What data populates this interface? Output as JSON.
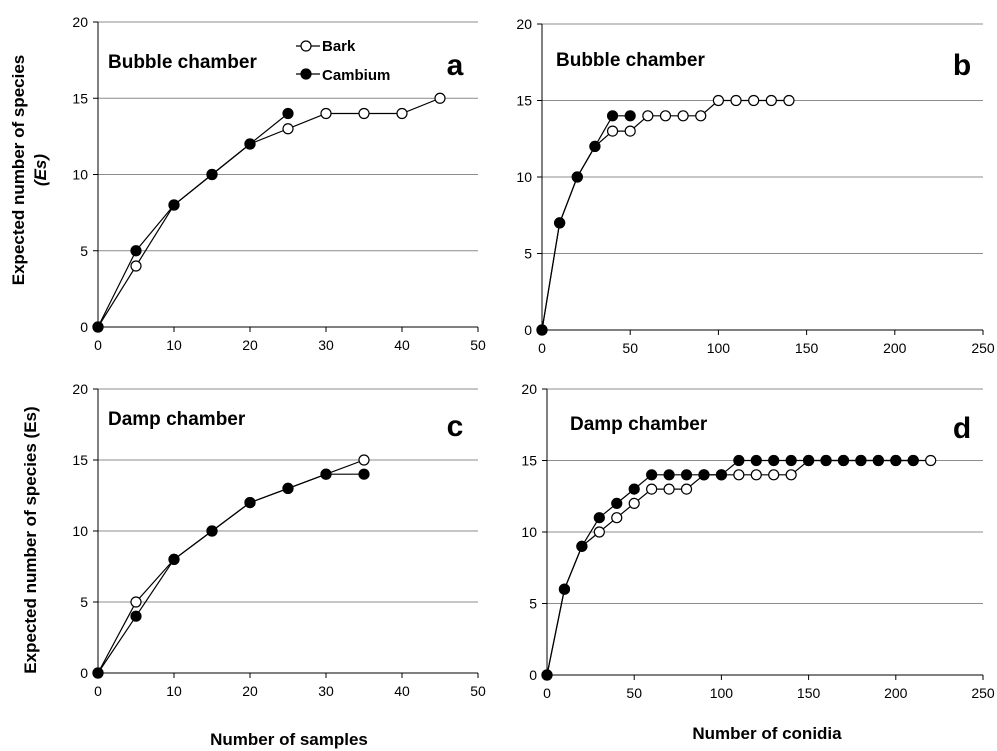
{
  "legend": {
    "series": [
      "Bark",
      "Cambium"
    ]
  },
  "labels": {
    "ylabel_top_line1": "Expected number of species",
    "ylabel_top_line2": "(Es)",
    "ylabel_bottom": "Expected number of species (Es)",
    "xlabel_left": "Number of samples",
    "xlabel_right": "Number of conidia"
  },
  "chart_data": [
    {
      "panel": "a",
      "type": "line",
      "title": "Bubble chamber",
      "xlim": [
        0,
        50
      ],
      "ylim": [
        0,
        20
      ],
      "xticks": [
        0,
        10,
        20,
        30,
        40,
        50
      ],
      "yticks": [
        0,
        5,
        10,
        15,
        20
      ],
      "grid": "horizontal",
      "legend_position": "top-center",
      "series": [
        {
          "name": "Bark",
          "marker": "open-circle",
          "x": [
            0,
            5,
            10,
            15,
            20,
            25,
            30,
            35,
            40,
            45
          ],
          "y": [
            0,
            4,
            8,
            10,
            12,
            13,
            14,
            14,
            14,
            15
          ]
        },
        {
          "name": "Cambium",
          "marker": "filled-circle",
          "x": [
            0,
            5,
            10,
            15,
            20,
            25
          ],
          "y": [
            0,
            5,
            8,
            10,
            12,
            14
          ]
        }
      ]
    },
    {
      "panel": "b",
      "type": "line",
      "title": "Bubble chamber",
      "xlim": [
        0,
        250
      ],
      "ylim": [
        0,
        20
      ],
      "xticks": [
        0,
        50,
        100,
        150,
        200,
        250
      ],
      "yticks": [
        0,
        5,
        10,
        15,
        20
      ],
      "grid": "horizontal",
      "series": [
        {
          "name": "Bark",
          "marker": "open-circle",
          "x": [
            0,
            10,
            20,
            30,
            40,
            50,
            60,
            70,
            80,
            90,
            100,
            110,
            120,
            130,
            140
          ],
          "y": [
            0,
            7,
            10,
            12,
            13,
            13,
            14,
            14,
            14,
            14,
            15,
            15,
            15,
            15,
            15
          ]
        },
        {
          "name": "Cambium",
          "marker": "filled-circle",
          "x": [
            0,
            10,
            20,
            30,
            40,
            50
          ],
          "y": [
            0,
            7,
            10,
            12,
            14,
            14
          ]
        }
      ]
    },
    {
      "panel": "c",
      "type": "line",
      "title": "Damp chamber",
      "xlim": [
        0,
        50
      ],
      "ylim": [
        0,
        20
      ],
      "xticks": [
        0,
        10,
        20,
        30,
        40,
        50
      ],
      "yticks": [
        0,
        5,
        10,
        15,
        20
      ],
      "grid": "horizontal",
      "series": [
        {
          "name": "Bark",
          "marker": "open-circle",
          "x": [
            0,
            5,
            10,
            15,
            20,
            25,
            30,
            35
          ],
          "y": [
            0,
            5,
            8,
            10,
            12,
            13,
            14,
            15
          ]
        },
        {
          "name": "Cambium",
          "marker": "filled-circle",
          "x": [
            0,
            5,
            10,
            15,
            20,
            25,
            30,
            35
          ],
          "y": [
            0,
            4,
            8,
            10,
            12,
            13,
            14,
            14
          ]
        }
      ]
    },
    {
      "panel": "d",
      "type": "line",
      "title": "Damp chamber",
      "xlim": [
        0,
        250
      ],
      "ylim": [
        0,
        20
      ],
      "xticks": [
        0,
        50,
        100,
        150,
        200,
        250
      ],
      "yticks": [
        0,
        5,
        10,
        15,
        20
      ],
      "grid": "horizontal",
      "series": [
        {
          "name": "Bark",
          "marker": "open-circle",
          "x": [
            0,
            10,
            20,
            30,
            40,
            50,
            60,
            70,
            80,
            90,
            100,
            110,
            120,
            130,
            140,
            150,
            160,
            170,
            180,
            190,
            200,
            210,
            220
          ],
          "y": [
            0,
            6,
            9,
            10,
            11,
            12,
            13,
            13,
            13,
            14,
            14,
            14,
            14,
            14,
            14,
            15,
            15,
            15,
            15,
            15,
            15,
            15,
            15
          ]
        },
        {
          "name": "Cambium",
          "marker": "filled-circle",
          "x": [
            0,
            10,
            20,
            30,
            40,
            50,
            60,
            70,
            80,
            90,
            100,
            110,
            120,
            130,
            140,
            150,
            160,
            170,
            180,
            190,
            200,
            210
          ],
          "y": [
            0,
            6,
            9,
            11,
            12,
            13,
            14,
            14,
            14,
            14,
            14,
            15,
            15,
            15,
            15,
            15,
            15,
            15,
            15,
            15,
            15,
            15
          ]
        }
      ]
    }
  ]
}
